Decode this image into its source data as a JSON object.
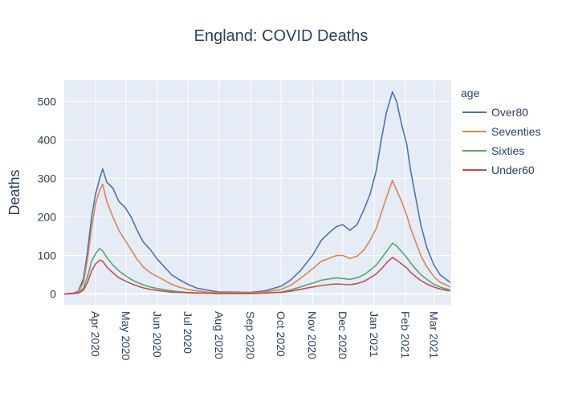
{
  "chart_data": {
    "type": "line",
    "title": "England: COVID Deaths",
    "xlabel": "",
    "ylabel": "Deaths",
    "xlim": [
      "2020-03-01",
      "2021-03-18"
    ],
    "ylim": [
      -28,
      555
    ],
    "yticks": [
      0,
      100,
      200,
      300,
      400,
      500
    ],
    "xticks": [
      {
        "date": "2020-04-01",
        "label": "Apr 2020"
      },
      {
        "date": "2020-05-01",
        "label": "May 2020"
      },
      {
        "date": "2020-06-01",
        "label": "Jun 2020"
      },
      {
        "date": "2020-07-01",
        "label": "Jul 2020"
      },
      {
        "date": "2020-08-01",
        "label": "Aug 2020"
      },
      {
        "date": "2020-09-01",
        "label": "Sep 2020"
      },
      {
        "date": "2020-10-01",
        "label": "Oct 2020"
      },
      {
        "date": "2020-11-01",
        "label": "Nov 2020"
      },
      {
        "date": "2020-12-01",
        "label": "Dec 2020"
      },
      {
        "date": "2021-01-01",
        "label": "Jan 2021"
      },
      {
        "date": "2021-02-01",
        "label": "Feb 2021"
      },
      {
        "date": "2021-03-01",
        "label": "Mar 2021"
      }
    ],
    "grid": true,
    "legend": {
      "title": "age",
      "position": "right"
    },
    "background": "#e5ecf6",
    "series": [
      {
        "name": "Over80",
        "color": "#4c72b0",
        "points": [
          [
            "2020-03-01",
            0
          ],
          [
            "2020-03-10",
            2
          ],
          [
            "2020-03-15",
            8
          ],
          [
            "2020-03-20",
            40
          ],
          [
            "2020-03-24",
            110
          ],
          [
            "2020-03-28",
            200
          ],
          [
            "2020-04-01",
            260
          ],
          [
            "2020-04-05",
            300
          ],
          [
            "2020-04-08",
            325
          ],
          [
            "2020-04-12",
            290
          ],
          [
            "2020-04-18",
            275
          ],
          [
            "2020-04-24",
            240
          ],
          [
            "2020-04-30",
            225
          ],
          [
            "2020-05-06",
            200
          ],
          [
            "2020-05-12",
            165
          ],
          [
            "2020-05-18",
            135
          ],
          [
            "2020-05-25",
            115
          ],
          [
            "2020-06-01",
            90
          ],
          [
            "2020-06-08",
            70
          ],
          [
            "2020-06-15",
            50
          ],
          [
            "2020-06-22",
            38
          ],
          [
            "2020-07-01",
            25
          ],
          [
            "2020-07-10",
            15
          ],
          [
            "2020-07-20",
            10
          ],
          [
            "2020-08-01",
            5
          ],
          [
            "2020-08-15",
            5
          ],
          [
            "2020-09-01",
            4
          ],
          [
            "2020-09-15",
            8
          ],
          [
            "2020-10-01",
            20
          ],
          [
            "2020-10-10",
            35
          ],
          [
            "2020-10-20",
            60
          ],
          [
            "2020-11-01",
            100
          ],
          [
            "2020-11-10",
            140
          ],
          [
            "2020-11-20",
            165
          ],
          [
            "2020-11-25",
            175
          ],
          [
            "2020-12-01",
            180
          ],
          [
            "2020-12-08",
            165
          ],
          [
            "2020-12-15",
            180
          ],
          [
            "2020-12-22",
            220
          ],
          [
            "2020-12-28",
            260
          ],
          [
            "2021-01-03",
            320
          ],
          [
            "2021-01-08",
            400
          ],
          [
            "2021-01-13",
            470
          ],
          [
            "2021-01-19",
            525
          ],
          [
            "2021-01-23",
            500
          ],
          [
            "2021-01-28",
            440
          ],
          [
            "2021-02-02",
            390
          ],
          [
            "2021-02-06",
            320
          ],
          [
            "2021-02-11",
            250
          ],
          [
            "2021-02-16",
            180
          ],
          [
            "2021-02-22",
            120
          ],
          [
            "2021-03-01",
            75
          ],
          [
            "2021-03-07",
            50
          ],
          [
            "2021-03-12",
            40
          ],
          [
            "2021-03-17",
            30
          ]
        ]
      },
      {
        "name": "Seventies",
        "color": "#dd8452",
        "points": [
          [
            "2020-03-01",
            0
          ],
          [
            "2020-03-10",
            1
          ],
          [
            "2020-03-15",
            6
          ],
          [
            "2020-03-20",
            30
          ],
          [
            "2020-03-24",
            90
          ],
          [
            "2020-03-28",
            170
          ],
          [
            "2020-04-01",
            235
          ],
          [
            "2020-04-05",
            270
          ],
          [
            "2020-04-08",
            285
          ],
          [
            "2020-04-12",
            240
          ],
          [
            "2020-04-18",
            200
          ],
          [
            "2020-04-24",
            165
          ],
          [
            "2020-04-30",
            140
          ],
          [
            "2020-05-06",
            115
          ],
          [
            "2020-05-12",
            90
          ],
          [
            "2020-05-18",
            70
          ],
          [
            "2020-05-25",
            55
          ],
          [
            "2020-06-01",
            45
          ],
          [
            "2020-06-08",
            35
          ],
          [
            "2020-06-15",
            25
          ],
          [
            "2020-06-22",
            18
          ],
          [
            "2020-07-01",
            12
          ],
          [
            "2020-07-10",
            8
          ],
          [
            "2020-07-20",
            5
          ],
          [
            "2020-08-01",
            3
          ],
          [
            "2020-08-15",
            3
          ],
          [
            "2020-09-01",
            3
          ],
          [
            "2020-09-15",
            5
          ],
          [
            "2020-10-01",
            12
          ],
          [
            "2020-10-10",
            22
          ],
          [
            "2020-10-20",
            40
          ],
          [
            "2020-11-01",
            65
          ],
          [
            "2020-11-10",
            85
          ],
          [
            "2020-11-20",
            95
          ],
          [
            "2020-11-25",
            100
          ],
          [
            "2020-12-01",
            100
          ],
          [
            "2020-12-08",
            92
          ],
          [
            "2020-12-15",
            98
          ],
          [
            "2020-12-22",
            115
          ],
          [
            "2020-12-28",
            140
          ],
          [
            "2021-01-03",
            170
          ],
          [
            "2021-01-08",
            210
          ],
          [
            "2021-01-13",
            250
          ],
          [
            "2021-01-19",
            295
          ],
          [
            "2021-01-23",
            270
          ],
          [
            "2021-01-28",
            240
          ],
          [
            "2021-02-02",
            205
          ],
          [
            "2021-02-06",
            170
          ],
          [
            "2021-02-11",
            135
          ],
          [
            "2021-02-16",
            100
          ],
          [
            "2021-02-22",
            70
          ],
          [
            "2021-03-01",
            45
          ],
          [
            "2021-03-07",
            30
          ],
          [
            "2021-03-12",
            25
          ],
          [
            "2021-03-17",
            18
          ]
        ]
      },
      {
        "name": "Sixties",
        "color": "#55a868",
        "points": [
          [
            "2020-03-01",
            0
          ],
          [
            "2020-03-10",
            1
          ],
          [
            "2020-03-15",
            3
          ],
          [
            "2020-03-20",
            15
          ],
          [
            "2020-03-24",
            45
          ],
          [
            "2020-03-28",
            85
          ],
          [
            "2020-04-01",
            105
          ],
          [
            "2020-04-05",
            118
          ],
          [
            "2020-04-08",
            112
          ],
          [
            "2020-04-12",
            95
          ],
          [
            "2020-04-18",
            75
          ],
          [
            "2020-04-24",
            60
          ],
          [
            "2020-04-30",
            48
          ],
          [
            "2020-05-06",
            38
          ],
          [
            "2020-05-12",
            30
          ],
          [
            "2020-05-18",
            24
          ],
          [
            "2020-05-25",
            18
          ],
          [
            "2020-06-01",
            14
          ],
          [
            "2020-06-08",
            11
          ],
          [
            "2020-06-15",
            8
          ],
          [
            "2020-06-22",
            6
          ],
          [
            "2020-07-01",
            4
          ],
          [
            "2020-07-10",
            3
          ],
          [
            "2020-07-20",
            2
          ],
          [
            "2020-08-01",
            1
          ],
          [
            "2020-08-15",
            1
          ],
          [
            "2020-09-01",
            1
          ],
          [
            "2020-09-15",
            2
          ],
          [
            "2020-10-01",
            5
          ],
          [
            "2020-10-10",
            10
          ],
          [
            "2020-10-20",
            18
          ],
          [
            "2020-11-01",
            28
          ],
          [
            "2020-11-10",
            36
          ],
          [
            "2020-11-20",
            40
          ],
          [
            "2020-11-25",
            42
          ],
          [
            "2020-12-01",
            40
          ],
          [
            "2020-12-08",
            38
          ],
          [
            "2020-12-15",
            42
          ],
          [
            "2020-12-22",
            50
          ],
          [
            "2020-12-28",
            62
          ],
          [
            "2021-01-03",
            75
          ],
          [
            "2021-01-08",
            92
          ],
          [
            "2021-01-13",
            110
          ],
          [
            "2021-01-19",
            132
          ],
          [
            "2021-01-23",
            125
          ],
          [
            "2021-01-28",
            110
          ],
          [
            "2021-02-02",
            95
          ],
          [
            "2021-02-06",
            80
          ],
          [
            "2021-02-11",
            65
          ],
          [
            "2021-02-16",
            50
          ],
          [
            "2021-02-22",
            38
          ],
          [
            "2021-03-01",
            25
          ],
          [
            "2021-03-07",
            18
          ],
          [
            "2021-03-12",
            14
          ],
          [
            "2021-03-17",
            10
          ]
        ]
      },
      {
        "name": "Under60",
        "color": "#c44e52",
        "points": [
          [
            "2020-03-01",
            0
          ],
          [
            "2020-03-10",
            1
          ],
          [
            "2020-03-15",
            2
          ],
          [
            "2020-03-20",
            10
          ],
          [
            "2020-03-24",
            30
          ],
          [
            "2020-03-28",
            60
          ],
          [
            "2020-04-01",
            78
          ],
          [
            "2020-04-05",
            88
          ],
          [
            "2020-04-08",
            85
          ],
          [
            "2020-04-12",
            70
          ],
          [
            "2020-04-18",
            55
          ],
          [
            "2020-04-24",
            42
          ],
          [
            "2020-04-30",
            34
          ],
          [
            "2020-05-06",
            27
          ],
          [
            "2020-05-12",
            21
          ],
          [
            "2020-05-18",
            16
          ],
          [
            "2020-05-25",
            12
          ],
          [
            "2020-06-01",
            9
          ],
          [
            "2020-06-08",
            7
          ],
          [
            "2020-06-15",
            5
          ],
          [
            "2020-06-22",
            4
          ],
          [
            "2020-07-01",
            3
          ],
          [
            "2020-07-10",
            2
          ],
          [
            "2020-07-20",
            2
          ],
          [
            "2020-08-01",
            1
          ],
          [
            "2020-08-15",
            1
          ],
          [
            "2020-09-01",
            1
          ],
          [
            "2020-09-15",
            2
          ],
          [
            "2020-10-01",
            4
          ],
          [
            "2020-10-10",
            7
          ],
          [
            "2020-10-20",
            12
          ],
          [
            "2020-11-01",
            18
          ],
          [
            "2020-11-10",
            22
          ],
          [
            "2020-11-20",
            25
          ],
          [
            "2020-11-25",
            26
          ],
          [
            "2020-12-01",
            25
          ],
          [
            "2020-12-08",
            24
          ],
          [
            "2020-12-15",
            27
          ],
          [
            "2020-12-22",
            33
          ],
          [
            "2020-12-28",
            42
          ],
          [
            "2021-01-03",
            52
          ],
          [
            "2021-01-08",
            65
          ],
          [
            "2021-01-13",
            80
          ],
          [
            "2021-01-19",
            95
          ],
          [
            "2021-01-23",
            88
          ],
          [
            "2021-01-28",
            78
          ],
          [
            "2021-02-02",
            68
          ],
          [
            "2021-02-06",
            56
          ],
          [
            "2021-02-11",
            45
          ],
          [
            "2021-02-16",
            35
          ],
          [
            "2021-02-22",
            26
          ],
          [
            "2021-03-01",
            18
          ],
          [
            "2021-03-07",
            13
          ],
          [
            "2021-03-12",
            10
          ],
          [
            "2021-03-17",
            8
          ]
        ]
      }
    ]
  }
}
